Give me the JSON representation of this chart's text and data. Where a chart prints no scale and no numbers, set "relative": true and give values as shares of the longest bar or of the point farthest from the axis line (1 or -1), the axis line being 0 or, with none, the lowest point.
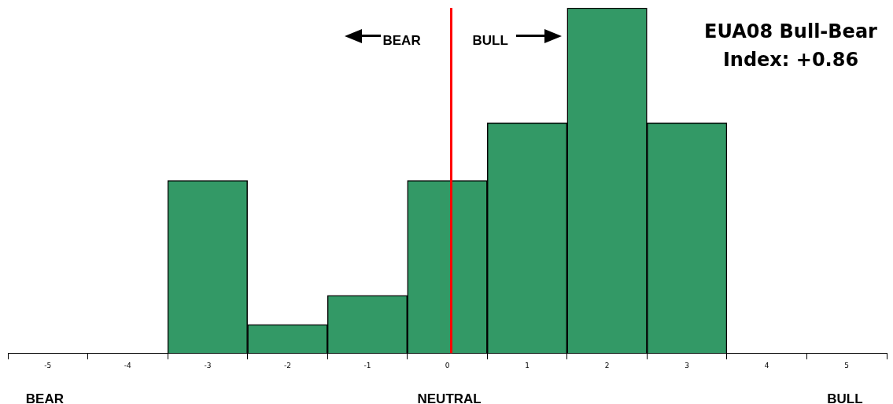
{
  "chart_data": {
    "type": "bar",
    "title": "EUA08 Bull-Bear Index: +0.86",
    "categories": [
      "-5",
      "-4",
      "-3",
      "-2",
      "-1",
      "0",
      "1",
      "2",
      "3",
      "4",
      "5"
    ],
    "values": [
      0,
      0,
      0.5,
      0.083,
      0.167,
      0.5,
      0.667,
      1,
      0.667,
      0,
      0
    ],
    "color": "#339966",
    "relative": true,
    "grid": false,
    "legend": false,
    "ref_lines": [
      {
        "axis": "x",
        "value": "0",
        "color": "#ff0000"
      }
    ],
    "annotations": [
      "BEAR",
      "BULL",
      "BEAR",
      "NEUTRAL",
      "BULL"
    ]
  }
}
